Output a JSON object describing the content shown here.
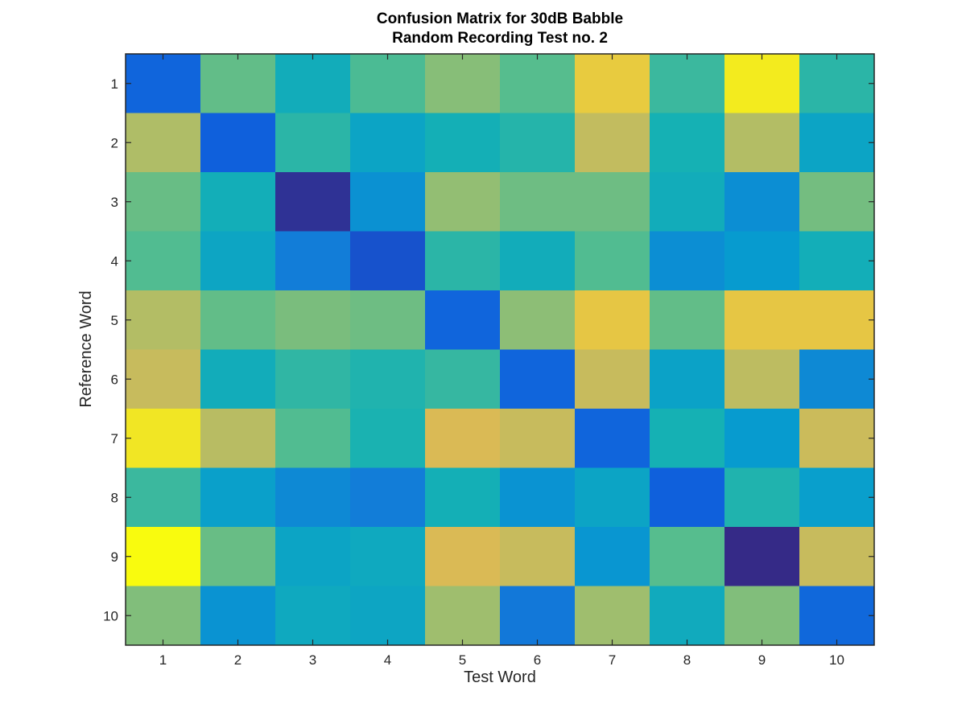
{
  "chart_data": {
    "type": "heatmap",
    "title_lines": [
      "Confusion Matrix for 30dB Babble",
      "Random Recording Test no. 2"
    ],
    "xlabel": "Test Word",
    "ylabel": "Reference Word",
    "x_categories": [
      "1",
      "2",
      "3",
      "4",
      "5",
      "6",
      "7",
      "8",
      "9",
      "10"
    ],
    "y_categories": [
      "1",
      "2",
      "3",
      "4",
      "5",
      "6",
      "7",
      "8",
      "9",
      "10"
    ],
    "colormap": "parula",
    "clim": [
      0,
      1
    ],
    "grid": false,
    "colorbar": false,
    "values": [
      [
        0.16,
        0.64,
        0.47,
        0.6,
        0.7,
        0.62,
        0.91,
        0.57,
        0.97,
        0.54
      ],
      [
        0.77,
        0.14,
        0.54,
        0.42,
        0.49,
        0.53,
        0.81,
        0.5,
        0.78,
        0.42
      ],
      [
        0.65,
        0.48,
        0.02,
        0.33,
        0.72,
        0.66,
        0.66,
        0.47,
        0.32,
        0.67
      ],
      [
        0.61,
        0.43,
        0.25,
        0.1,
        0.54,
        0.47,
        0.61,
        0.32,
        0.37,
        0.48
      ],
      [
        0.78,
        0.64,
        0.68,
        0.66,
        0.16,
        0.71,
        0.9,
        0.64,
        0.9,
        0.9
      ],
      [
        0.82,
        0.47,
        0.55,
        0.52,
        0.56,
        0.16,
        0.82,
        0.41,
        0.8,
        0.3
      ],
      [
        0.96,
        0.79,
        0.61,
        0.51,
        0.86,
        0.82,
        0.16,
        0.5,
        0.37,
        0.83
      ],
      [
        0.57,
        0.4,
        0.3,
        0.25,
        0.49,
        0.34,
        0.42,
        0.14,
        0.52,
        0.39
      ],
      [
        1.0,
        0.65,
        0.42,
        0.45,
        0.86,
        0.82,
        0.35,
        0.62,
        0.0,
        0.82
      ],
      [
        0.69,
        0.34,
        0.45,
        0.43,
        0.74,
        0.23,
        0.74,
        0.46,
        0.69,
        0.17
      ]
    ]
  }
}
